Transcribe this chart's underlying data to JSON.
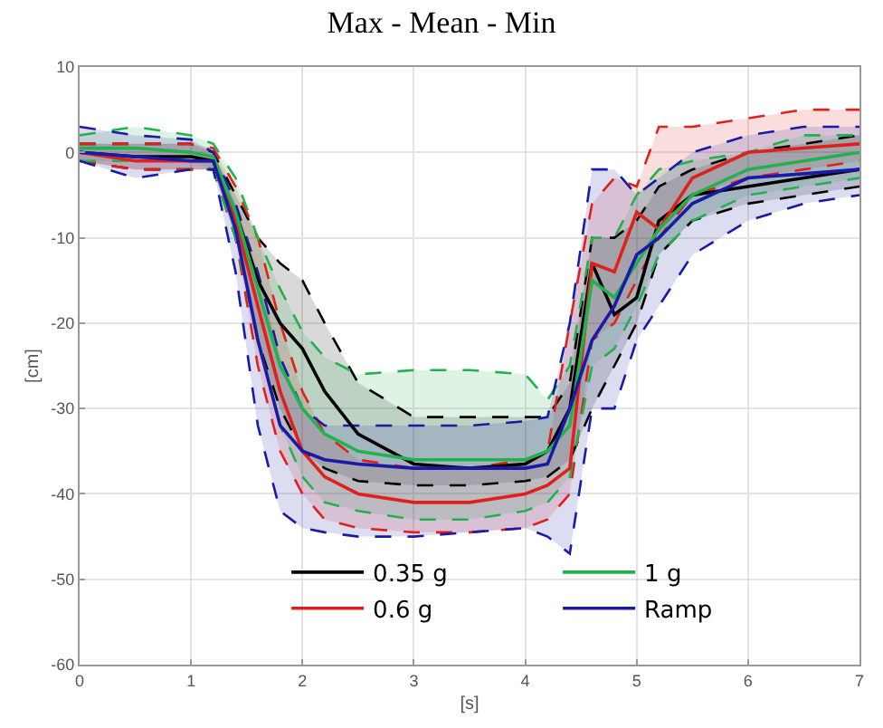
{
  "chart_data": {
    "type": "line",
    "title": "Max - Mean - Min",
    "xlabel": "[s]",
    "ylabel": "[cm]",
    "x": [
      0,
      0.5,
      1,
      1.2,
      1.4,
      1.6,
      1.8,
      2,
      2.2,
      2.5,
      3,
      3.5,
      4,
      4.2,
      4.4,
      4.6,
      4.8,
      5,
      5.2,
      5.5,
      6,
      6.5,
      7
    ],
    "xlim": [
      0,
      7
    ],
    "xticks": [
      0,
      1,
      2,
      3,
      4,
      5,
      6,
      7
    ],
    "ylim": [
      -60,
      10
    ],
    "yticks": [
      -60,
      -50,
      -40,
      -30,
      -20,
      -10,
      0,
      10
    ],
    "grid": true,
    "legend": "bottom",
    "marker": "none",
    "line_style": "solid",
    "series": [
      {
        "color": "#000000",
        "line_style": "dashed",
        "values": [
          1,
          1,
          1,
          0,
          -5,
          -10,
          -13,
          -15,
          -20,
          -27,
          -31,
          -31,
          -31,
          -31,
          -27,
          -10,
          -10,
          -8,
          -4,
          -2,
          0,
          1,
          2
        ]
      },
      {
        "color": "#000000",
        "line_style": "dashed",
        "values": [
          -1,
          -2,
          -2,
          -2,
          -10,
          -22,
          -30,
          -35,
          -37,
          -38.5,
          -39,
          -39,
          -38.5,
          -38,
          -36,
          -30,
          -25,
          -20,
          -12,
          -8,
          -6,
          -5,
          -4
        ]
      },
      {
        "color": "#e0201b",
        "line_style": "dashed",
        "values": [
          1,
          1,
          1,
          0.5,
          -4,
          -10,
          -20,
          -28,
          -33,
          -36,
          -37,
          -37,
          -36,
          -35,
          -20,
          -6,
          -3,
          -4,
          3,
          3,
          4,
          5,
          5
        ]
      },
      {
        "color": "#e0201b",
        "line_style": "dashed",
        "values": [
          -1,
          -2,
          -2,
          -2,
          -10,
          -25,
          -35,
          -40,
          -43,
          -44,
          -44.5,
          -44.5,
          -44,
          -43,
          -40,
          -22,
          -20,
          -15,
          -10,
          -5,
          -3,
          -2,
          -1
        ]
      },
      {
        "color": "#22b14c",
        "line_style": "dashed",
        "values": [
          2,
          3,
          2,
          1,
          -3,
          -10,
          -16,
          -21,
          -24,
          -26,
          -25.5,
          -25.5,
          -26,
          -29,
          -25,
          -10,
          -10,
          -5,
          -2,
          -1,
          0,
          2,
          2
        ]
      },
      {
        "color": "#22b14c",
        "line_style": "dashed",
        "values": [
          -1,
          -1,
          -1,
          -2,
          -10,
          -22,
          -32,
          -38,
          -41,
          -42,
          -43,
          -43,
          -42,
          -41,
          -38,
          -25,
          -23,
          -18,
          -12,
          -8,
          -5,
          -4,
          -3
        ]
      },
      {
        "color": "#1a1aa8",
        "line_style": "dashed",
        "values": [
          3,
          2,
          1.5,
          0,
          -6,
          -14,
          -24,
          -30,
          -32,
          -32,
          -32,
          -32,
          -31.5,
          -31,
          -20,
          -2,
          -2,
          -5,
          -3,
          0,
          2,
          3,
          3
        ]
      },
      {
        "color": "#1a1aa8",
        "line_style": "dashed",
        "values": [
          -1,
          -3,
          -2,
          -2,
          -14,
          -32,
          -42,
          -44,
          -44.5,
          -45,
          -45,
          -44.5,
          -44,
          -45,
          -47,
          -30,
          -30,
          -22,
          -18,
          -12,
          -8,
          -6,
          -5
        ]
      },
      {
        "name": "0.35 g",
        "color": "#000000",
        "values": [
          0,
          -0.5,
          -0.5,
          -1,
          -7,
          -15,
          -20,
          -23,
          -28,
          -33,
          -36.5,
          -37,
          -36.5,
          -35,
          -30,
          -13,
          -19,
          -17,
          -8,
          -5,
          -4,
          -3,
          -2
        ],
        "upper": [
          1,
          1,
          1,
          0,
          -5,
          -10,
          -13,
          -15,
          -20,
          -27,
          -31,
          -31,
          -31,
          -31,
          -27,
          -10,
          -10,
          -8,
          -4,
          -2,
          0,
          1,
          2
        ],
        "lower": [
          -1,
          -2,
          -2,
          -2,
          -10,
          -22,
          -30,
          -35,
          -37,
          -38.5,
          -39,
          -39,
          -38.5,
          -38,
          -36,
          -30,
          -25,
          -20,
          -12,
          -8,
          -6,
          -5,
          -4
        ]
      },
      {
        "name": "0.6 g",
        "color": "#e0201b",
        "values": [
          0,
          -1,
          -1,
          -1,
          -8,
          -18,
          -28,
          -35,
          -38,
          -40,
          -41,
          -41,
          -40,
          -39,
          -37,
          -13,
          -14,
          -7,
          -9,
          -3,
          0,
          0.5,
          1
        ],
        "upper": [
          1,
          1,
          1,
          0.5,
          -4,
          -10,
          -20,
          -28,
          -33,
          -36,
          -37,
          -37,
          -36,
          -35,
          -20,
          -6,
          -3,
          -4,
          3,
          3,
          4,
          5,
          5
        ],
        "lower": [
          -1,
          -2,
          -2,
          -2,
          -10,
          -25,
          -35,
          -40,
          -43,
          -44,
          -44.5,
          -44.5,
          -44,
          -43,
          -40,
          -22,
          -20,
          -15,
          -10,
          -5,
          -3,
          -2,
          -1
        ]
      },
      {
        "name": "1 g",
        "color": "#22b14c",
        "values": [
          0.5,
          0.5,
          0,
          -0.5,
          -7,
          -16,
          -25,
          -30,
          -33,
          -35,
          -36,
          -36,
          -36,
          -35,
          -32,
          -15,
          -17,
          -13,
          -9,
          -5,
          -2,
          -1,
          0
        ],
        "upper": [
          2,
          3,
          2,
          1,
          -3,
          -10,
          -16,
          -21,
          -24,
          -26,
          -25.5,
          -25.5,
          -26,
          -29,
          -25,
          -10,
          -10,
          -5,
          -2,
          -1,
          0,
          2,
          2
        ],
        "lower": [
          -1,
          -1,
          -1,
          -2,
          -10,
          -22,
          -32,
          -38,
          -41,
          -42,
          -43,
          -43,
          -42,
          -41,
          -38,
          -25,
          -23,
          -18,
          -12,
          -8,
          -5,
          -4,
          -3
        ]
      },
      {
        "name": "Ramp",
        "color": "#1a1aa8",
        "values": [
          0,
          -0.5,
          -1,
          -1,
          -9,
          -22,
          -32,
          -35,
          -36,
          -36.5,
          -37,
          -37,
          -37,
          -36.5,
          -30,
          -22,
          -18,
          -12,
          -10,
          -6,
          -3,
          -2.5,
          -2
        ],
        "upper": [
          3,
          2,
          1.5,
          0,
          -6,
          -14,
          -24,
          -30,
          -32,
          -32,
          -32,
          -32,
          -31.5,
          -31,
          -20,
          -2,
          -2,
          -5,
          -3,
          0,
          2,
          3,
          3
        ],
        "lower": [
          -1,
          -3,
          -2,
          -2,
          -14,
          -32,
          -42,
          -44,
          -44.5,
          -45,
          -45,
          -44.5,
          -44,
          -45,
          -47,
          -30,
          -30,
          -22,
          -18,
          -12,
          -8,
          -6,
          -5
        ]
      }
    ]
  }
}
